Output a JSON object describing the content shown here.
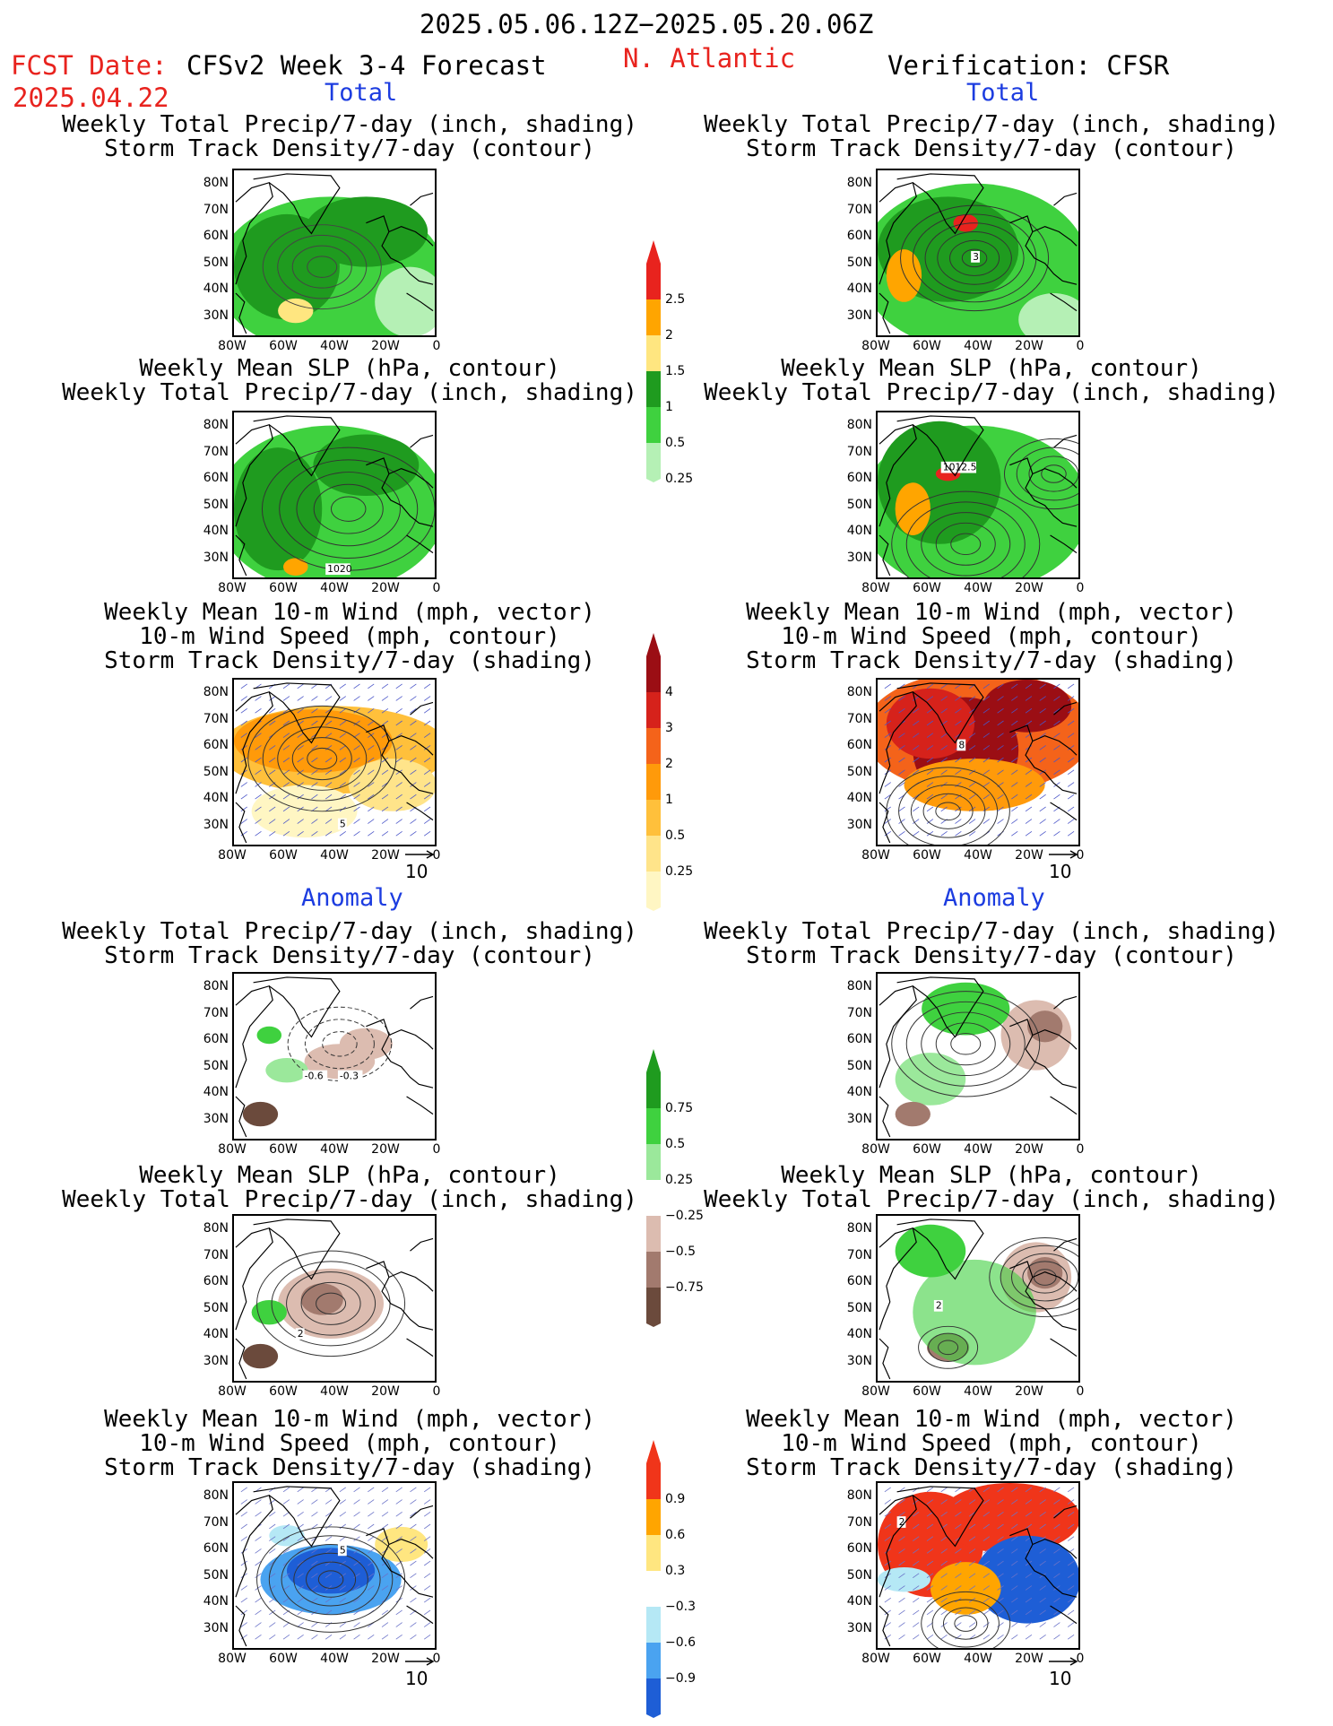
{
  "header": {
    "period": "2025.05.06.12Z−2025.05.20.06Z",
    "fcst_label": "FCST Date:",
    "fcst_date": "2025.04.22",
    "model": "CFSv2 Week 3-4 Forecast",
    "region": "N. Atlantic",
    "verification": "Verification: CFSR"
  },
  "sections": {
    "total": "Total",
    "anomaly": "Anomaly"
  },
  "panel_titles": {
    "precip_storm": [
      "Weekly Total Precip/7-day (inch, shading)",
      "Storm Track Density/7-day (contour)"
    ],
    "slp_precip": [
      "Weekly Mean SLP (hPa, contour)",
      "Weekly Total Precip/7-day (inch, shading)"
    ],
    "wind_storm": [
      "Weekly Mean 10-m Wind (mph, vector)",
      "10-m Wind Speed (mph, contour)",
      "Storm Track Density/7-day (shading)"
    ]
  },
  "axes": {
    "lat_labels": [
      "80N",
      "70N",
      "60N",
      "50N",
      "40N",
      "30N"
    ],
    "lon_labels": [
      "80W",
      "60W",
      "40W",
      "20W",
      "0"
    ]
  },
  "vector_ref": "10",
  "contour_labels": {
    "r1_right": "3",
    "r2_left": "1020",
    "r2_right": "1012.5",
    "r3_left": "5",
    "r3_right": "8",
    "r4_left_a": "-0.6",
    "r4_left_b": "-0.3",
    "r5_left": "2",
    "r5_right": "2",
    "r6_left": "5",
    "r6_right": "2"
  },
  "colorbars": {
    "precip_total": {
      "labels": [
        "2.5",
        "2",
        "1.5",
        "1",
        "0.5",
        "0.25"
      ],
      "colors": [
        "#e8231e",
        "#ffa500",
        "#ffe680",
        "#1f9b1f",
        "#3fd13f",
        "#b5f0b5"
      ]
    },
    "storm_total": {
      "labels": [
        "4",
        "3",
        "2",
        "1",
        "0.5",
        "0.25"
      ],
      "colors": [
        "#9b0e14",
        "#d6221b",
        "#f4631a",
        "#ff9a0a",
        "#ffc03b",
        "#ffe48a",
        "#fff6c3"
      ]
    },
    "precip_anom": {
      "labels": [
        "0.75",
        "0.5",
        "0.25",
        "−0.25",
        "−0.5",
        "−0.75"
      ],
      "colors": [
        "#1f9b1f",
        "#3fd13f",
        "#9be89b",
        "#ffffff",
        "#dcbcb0",
        "#a27a6e",
        "#6b4a3c"
      ]
    },
    "storm_anom": {
      "labels": [
        "0.9",
        "0.6",
        "0.3",
        "−0.3",
        "−0.6",
        "−0.9"
      ],
      "colors": [
        "#f0351a",
        "#ffa500",
        "#ffe680",
        "#ffffff",
        "#b5e8f5",
        "#4aa3f0",
        "#1e5ed6"
      ]
    }
  }
}
